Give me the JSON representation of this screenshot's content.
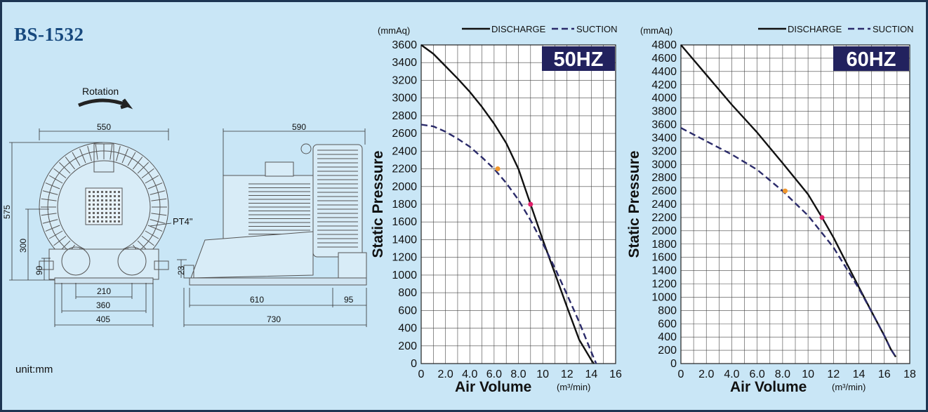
{
  "page": {
    "model": "BS-1532",
    "unit": "unit:mm"
  },
  "drawing": {
    "rotation_label": "Rotation",
    "port_label": "PT4\"",
    "dims": {
      "front_width": "550",
      "side_length": "590",
      "overall_height": "575",
      "axis_height": "300",
      "foot_height": "90",
      "foot_span_inner": "210",
      "foot_span_mid": "360",
      "base_width": "405",
      "flange_height": "23",
      "side_foot_length": "610",
      "side_overhang": "95",
      "side_base_length": "730"
    }
  },
  "legend": {
    "discharge": "DISCHARGE",
    "suction": "SUCTION"
  },
  "colors": {
    "background": "#c9e6f6",
    "badge": "#22225e",
    "discharge": "#111111",
    "suction": "#2b2b6a",
    "point_orange": "#f0962a",
    "point_magenta": "#e01f6a"
  },
  "chart_data": [
    {
      "type": "line",
      "badge": "50HZ",
      "ylabel": "Static Pressure",
      "yunit": "(mmAq)",
      "xlabel": "Air Volume",
      "xunit": "(m³/min)",
      "xlim": [
        0,
        16
      ],
      "ylim": [
        0,
        3600
      ],
      "xticks": [
        0,
        2,
        4,
        6,
        8,
        10,
        12,
        14,
        16
      ],
      "xtick_labels": [
        "0",
        "2.0",
        "4.0",
        "6.0",
        "8.0",
        "10",
        "12",
        "14",
        "16"
      ],
      "yticks": [
        0,
        200,
        400,
        600,
        800,
        1000,
        1200,
        1400,
        1600,
        1800,
        2000,
        2200,
        2400,
        2600,
        2800,
        3000,
        3200,
        3400,
        3600
      ],
      "grid": true,
      "legend": "top",
      "series": [
        {
          "name": "DISCHARGE",
          "style": "solid",
          "x": [
            0,
            1,
            2,
            3,
            4,
            5,
            6,
            7,
            8,
            9,
            10,
            11,
            12,
            13,
            14,
            14.2
          ],
          "y": [
            3600,
            3500,
            3360,
            3220,
            3070,
            2900,
            2710,
            2490,
            2200,
            1800,
            1400,
            1020,
            640,
            270,
            40,
            0
          ]
        },
        {
          "name": "SUCTION",
          "style": "dashed",
          "x": [
            0,
            1,
            2,
            3,
            4,
            5,
            6,
            7,
            8,
            9,
            10,
            11,
            12,
            13,
            14,
            14.4
          ],
          "y": [
            2700,
            2680,
            2620,
            2540,
            2450,
            2330,
            2200,
            2040,
            1850,
            1620,
            1360,
            1080,
            780,
            470,
            130,
            0
          ]
        }
      ],
      "points": [
        {
          "x": 6.3,
          "y": 2200,
          "color": "orange"
        },
        {
          "x": 9.0,
          "y": 1800,
          "color": "magenta"
        }
      ]
    },
    {
      "type": "line",
      "badge": "60HZ",
      "ylabel": "Static Pressure",
      "yunit": "(mmAq)",
      "xlabel": "Air Volume",
      "xunit": "(m³/min)",
      "xlim": [
        0,
        18
      ],
      "ylim": [
        0,
        4800
      ],
      "xticks": [
        0,
        2,
        4,
        6,
        8,
        10,
        12,
        14,
        16,
        18
      ],
      "xtick_labels": [
        "0",
        "2.0",
        "4.0",
        "6.0",
        "8.0",
        "10",
        "12",
        "14",
        "16",
        "18"
      ],
      "yticks": [
        0,
        200,
        400,
        600,
        800,
        1000,
        1200,
        1400,
        1600,
        1800,
        2000,
        2200,
        2400,
        2600,
        2800,
        3000,
        3200,
        3400,
        3600,
        3800,
        4000,
        4200,
        4400,
        4600,
        4800
      ],
      "grid": true,
      "legend": "top",
      "series": [
        {
          "name": "DISCHARGE",
          "style": "solid",
          "x": [
            0,
            2,
            4,
            6,
            8,
            10,
            11.1,
            12,
            14,
            15,
            16,
            16.5,
            16.9
          ],
          "y": [
            4800,
            4350,
            3900,
            3480,
            3020,
            2550,
            2200,
            1900,
            1150,
            780,
            420,
            220,
            100
          ]
        },
        {
          "name": "SUCTION",
          "style": "dashed",
          "x": [
            0,
            2,
            4,
            6,
            8,
            10,
            12,
            14,
            15,
            16,
            16.5,
            16.9
          ],
          "y": [
            3550,
            3350,
            3150,
            2920,
            2600,
            2230,
            1750,
            1130,
            780,
            420,
            220,
            100
          ]
        }
      ],
      "points": [
        {
          "x": 8.2,
          "y": 2600,
          "color": "orange"
        },
        {
          "x": 11.1,
          "y": 2200,
          "color": "magenta"
        }
      ]
    }
  ]
}
